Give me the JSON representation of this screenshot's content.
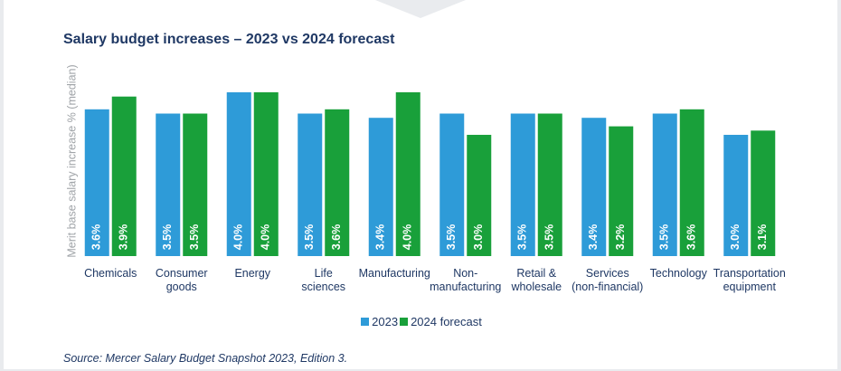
{
  "chart_data": {
    "type": "bar",
    "title": "Salary budget increases – 2023 vs 2024 forecast",
    "y_label": "Merit base salary increase % (median)",
    "source": "Source: Mercer Salary Budget Snapshot 2023, Edition 3.",
    "categories": [
      "Chemicals",
      "Consumer\ngoods",
      "Energy",
      "Life\nsciences",
      "Manufacturing",
      "Non-\nmanufacturing",
      "Retail &\nwholesale",
      "Services\n(non-financial)",
      "Technology",
      "Transportation\nequipment"
    ],
    "series": [
      {
        "name": "2023",
        "color": "#2e9bd8",
        "values": [
          3.6,
          3.5,
          4.0,
          3.5,
          3.4,
          3.5,
          3.5,
          3.4,
          3.5,
          3.0
        ],
        "value_labels": [
          "3.6%",
          "3.5%",
          "4.0%",
          "3.5%",
          "3.4%",
          "3.5%",
          "3.5%",
          "3.4%",
          "3.5%",
          "3.0%"
        ]
      },
      {
        "name": "2024 forecast",
        "color": "#19a03a",
        "values": [
          3.9,
          3.5,
          4.0,
          3.6,
          4.0,
          3.0,
          3.5,
          3.2,
          3.6,
          3.1
        ],
        "value_labels": [
          "3.9%",
          "3.5%",
          "4.0%",
          "3.6%",
          "4.0%",
          "3.0%",
          "3.5%",
          "3.2%",
          "3.6%",
          "3.1%"
        ]
      }
    ],
    "ylim": [
      0.15,
      4.5
    ],
    "legend": "bottom"
  }
}
